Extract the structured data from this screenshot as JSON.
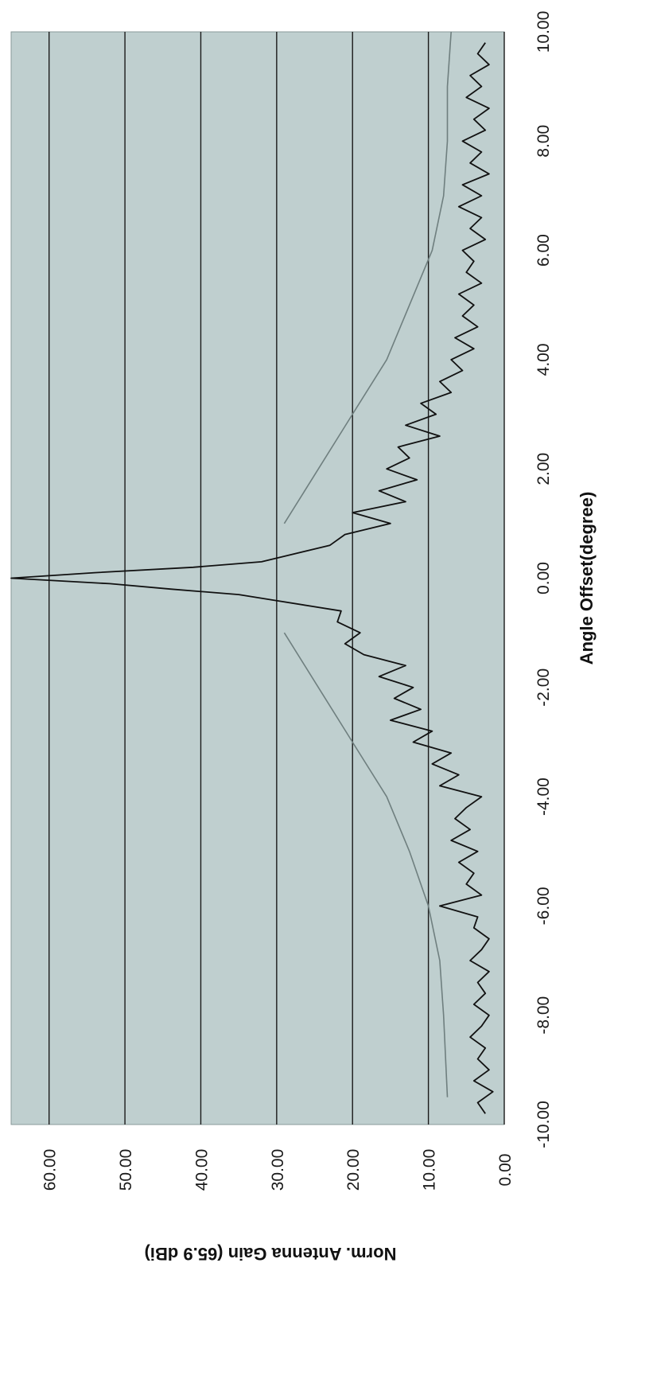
{
  "chart_data": {
    "type": "line",
    "orientation": "rotated-90-clockwise",
    "xlabel": "Angle Offset(degree)",
    "ylabel": "Norm. Antenna Gain (65.9 dBi)",
    "xlim": [
      -10,
      10
    ],
    "ylim": [
      0,
      65
    ],
    "xticks": [
      "-10.00",
      "-8.00",
      "-6.00",
      "-4.00",
      "-2.00",
      "0.00",
      "2.00",
      "4.00",
      "6.00",
      "8.00",
      "10.00"
    ],
    "yticks": [
      "0.00",
      "10.00",
      "20.00",
      "30.00",
      "40.00",
      "50.00",
      "60.00"
    ],
    "grid": "horizontal",
    "colors": {
      "plot_bg": "#bfcfcf",
      "measured": "#111111",
      "mask": "#6f7f7f",
      "grid": "#1a1a1a"
    },
    "series": [
      {
        "role": "measured pattern",
        "x": [
          -9.8,
          -9.6,
          -9.4,
          -9.2,
          -9.0,
          -8.8,
          -8.6,
          -8.4,
          -8.2,
          -8.0,
          -7.8,
          -7.6,
          -7.4,
          -7.2,
          -7.0,
          -6.8,
          -6.6,
          -6.4,
          -6.2,
          -6.0,
          -5.8,
          -5.6,
          -5.4,
          -5.2,
          -5.0,
          -4.8,
          -4.6,
          -4.4,
          -4.2,
          -4.0,
          -3.8,
          -3.6,
          -3.4,
          -3.2,
          -3.0,
          -2.8,
          -2.6,
          -2.4,
          -2.2,
          -2.0,
          -1.8,
          -1.6,
          -1.4,
          -1.2,
          -1.0,
          -0.8,
          -0.6,
          -0.4,
          -0.3,
          -0.2,
          -0.1,
          0.0,
          0.1,
          0.2,
          0.3,
          0.4,
          0.6,
          0.8,
          1.0,
          1.2,
          1.4,
          1.6,
          1.8,
          2.0,
          2.2,
          2.4,
          2.6,
          2.8,
          3.0,
          3.2,
          3.4,
          3.6,
          3.8,
          4.0,
          4.2,
          4.4,
          4.6,
          4.8,
          5.0,
          5.2,
          5.4,
          5.6,
          5.8,
          6.0,
          6.2,
          6.4,
          6.6,
          6.8,
          7.0,
          7.2,
          7.4,
          7.6,
          7.8,
          8.0,
          8.2,
          8.4,
          8.6,
          8.8,
          9.0,
          9.2,
          9.4,
          9.6,
          9.8
        ],
        "y": [
          2.5,
          3.5,
          1.5,
          4.0,
          2.0,
          3.5,
          2.5,
          4.5,
          3.0,
          2.0,
          4.0,
          2.5,
          3.5,
          2.0,
          4.5,
          3.0,
          2.0,
          4.0,
          3.5,
          8.5,
          3.0,
          5.0,
          4.0,
          6.0,
          3.5,
          7.0,
          4.5,
          6.5,
          5.0,
          3.0,
          8.5,
          6.0,
          9.5,
          7.0,
          12.0,
          9.5,
          15.0,
          11.0,
          14.5,
          12.0,
          16.5,
          13.0,
          18.5,
          21.0,
          19.0,
          22.0,
          21.5,
          30.5,
          35.0,
          44.0,
          52.0,
          65.0,
          54.0,
          41.0,
          32.0,
          29.0,
          23.0,
          21.0,
          15.0,
          20.0,
          13.0,
          16.5,
          11.5,
          15.5,
          12.5,
          14.0,
          8.5,
          13.0,
          9.0,
          11.0,
          7.0,
          8.5,
          5.5,
          7.0,
          4.0,
          6.5,
          3.5,
          5.5,
          4.0,
          6.0,
          3.0,
          5.0,
          4.0,
          5.5,
          2.5,
          4.5,
          3.0,
          6.0,
          3.0,
          5.5,
          2.0,
          4.5,
          3.0,
          5.5,
          2.5,
          4.0,
          2.0,
          5.0,
          3.0,
          4.5,
          2.0,
          3.5,
          2.5
        ]
      },
      {
        "role": "envelope mask (left)",
        "x": [
          -9.5,
          -8.0,
          -7.0,
          -6.0,
          -5.0,
          -4.0,
          -3.0,
          -2.0,
          -1.0
        ],
        "y": [
          7.5,
          8.0,
          8.5,
          10.0,
          12.5,
          15.5,
          20.0,
          24.5,
          29.0
        ]
      },
      {
        "role": "envelope mask (right)",
        "x": [
          1.0,
          2.0,
          3.0,
          4.0,
          5.0,
          6.0,
          7.0,
          8.0,
          9.0,
          10.0
        ],
        "y": [
          29.0,
          24.5,
          20.0,
          15.5,
          12.5,
          9.5,
          8.0,
          7.5,
          7.5,
          7.0
        ]
      }
    ]
  }
}
